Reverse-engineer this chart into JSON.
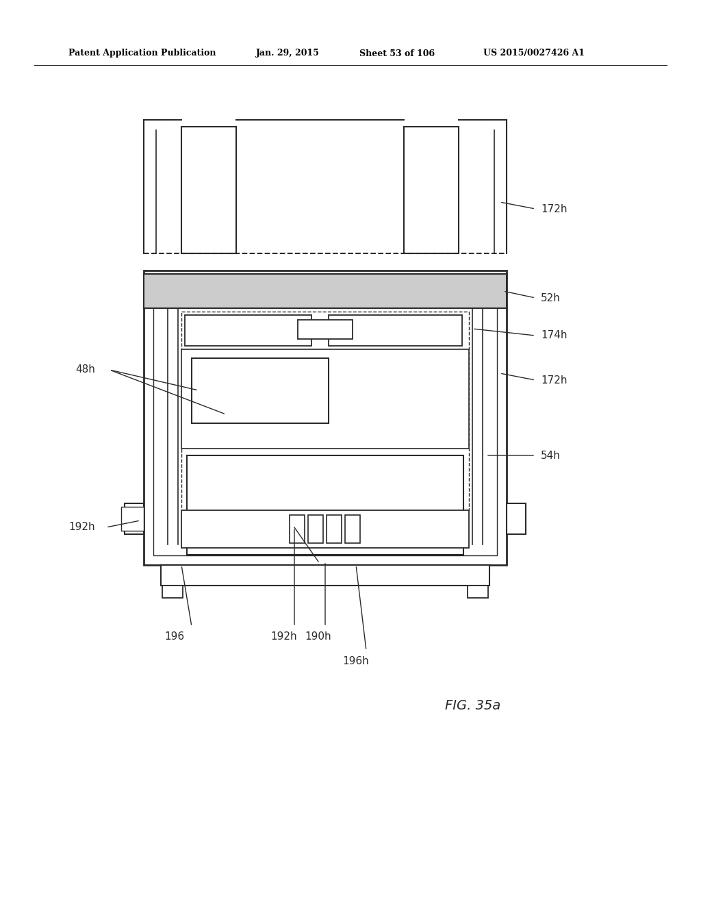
{
  "bg_color": "#ffffff",
  "line_color": "#2a2a2a",
  "header_left": "Patent Application Publication",
  "header_mid1": "Jan. 29, 2015",
  "header_mid2": "Sheet 53 of 106",
  "header_right": "US 2015/0027426 A1",
  "fig_label": "FIG. 35a"
}
